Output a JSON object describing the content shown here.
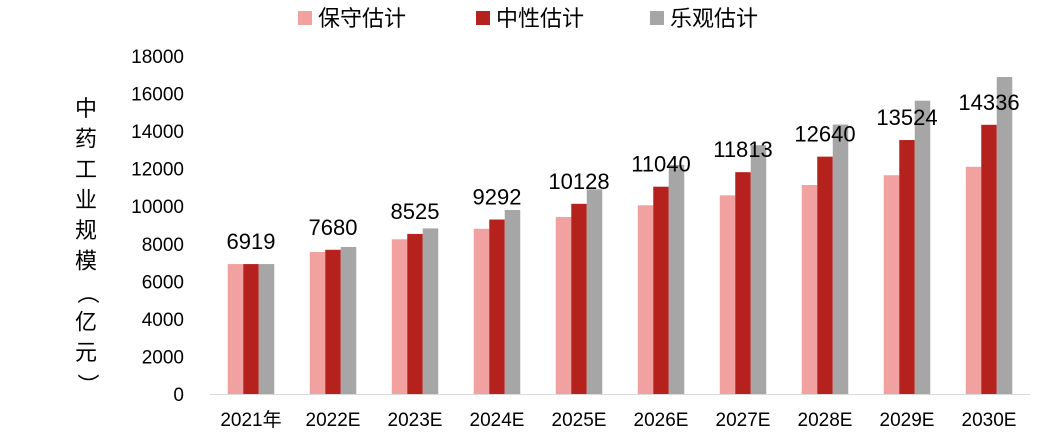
{
  "chart_data": {
    "type": "bar",
    "categories": [
      "2021年",
      "2022E",
      "2023E",
      "2024E",
      "2025E",
      "2026E",
      "2027E",
      "2028E",
      "2029E",
      "2030E"
    ],
    "series": [
      {
        "name": "保守估计",
        "color": "#f2a1a1",
        "values": [
          6919,
          7560,
          8240,
          8800,
          9430,
          10050,
          10580,
          11130,
          11650,
          12100
        ]
      },
      {
        "name": "中性估计",
        "color": "#b5221e",
        "values": [
          6919,
          7680,
          8525,
          9292,
          10128,
          11040,
          11813,
          12640,
          13524,
          14336
        ]
      },
      {
        "name": "乐观估计",
        "color": "#a6a6a6",
        "values": [
          6919,
          7830,
          8820,
          9800,
          10900,
          12200,
          13250,
          14350,
          15620,
          16880
        ]
      }
    ],
    "data_labels": [
      "6919",
      "7680",
      "8525",
      "9292",
      "10128",
      "11040",
      "11813",
      "12640",
      "13524",
      "14336"
    ],
    "ylabel": "中药工业规模（亿元）",
    "ylim": [
      0,
      18000
    ],
    "yticks": [
      0,
      2000,
      4000,
      6000,
      8000,
      10000,
      12000,
      14000,
      16000,
      18000
    ],
    "legend_position": "top",
    "grid": false
  }
}
